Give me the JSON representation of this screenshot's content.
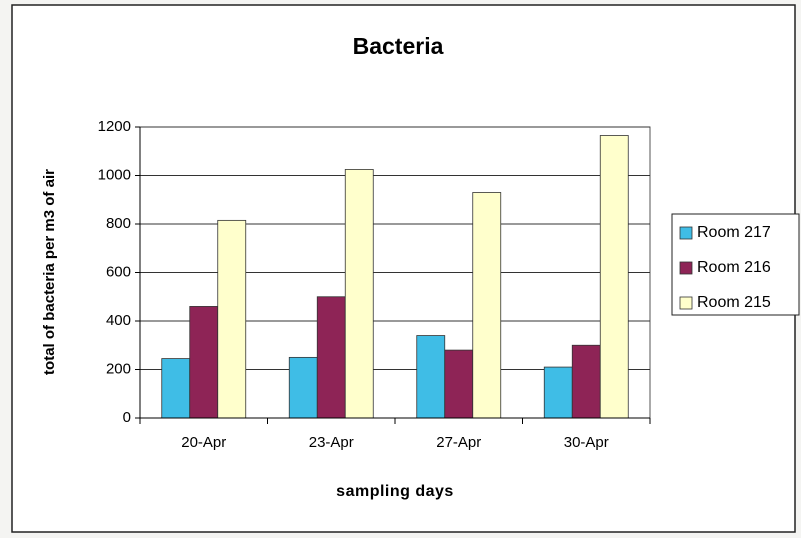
{
  "chart_data": {
    "type": "bar",
    "title": "Bacteria",
    "xlabel": "sampling days",
    "ylabel": "total of bacteria per m3 of air",
    "categories": [
      "20-Apr",
      "23-Apr",
      "27-Apr",
      "30-Apr"
    ],
    "series": [
      {
        "name": "Room 217",
        "color": "#3fbde6",
        "values": [
          245,
          250,
          340,
          210
        ]
      },
      {
        "name": "Room 216",
        "color": "#8e2456",
        "values": [
          460,
          500,
          280,
          300
        ]
      },
      {
        "name": "Room 215",
        "color": "#ffffcc",
        "values": [
          815,
          1025,
          930,
          1165
        ]
      }
    ],
    "ylim": [
      0,
      1200
    ],
    "yticks": [
      0,
      200,
      400,
      600,
      800,
      1000,
      1200
    ],
    "grid": true,
    "legend": "right"
  }
}
